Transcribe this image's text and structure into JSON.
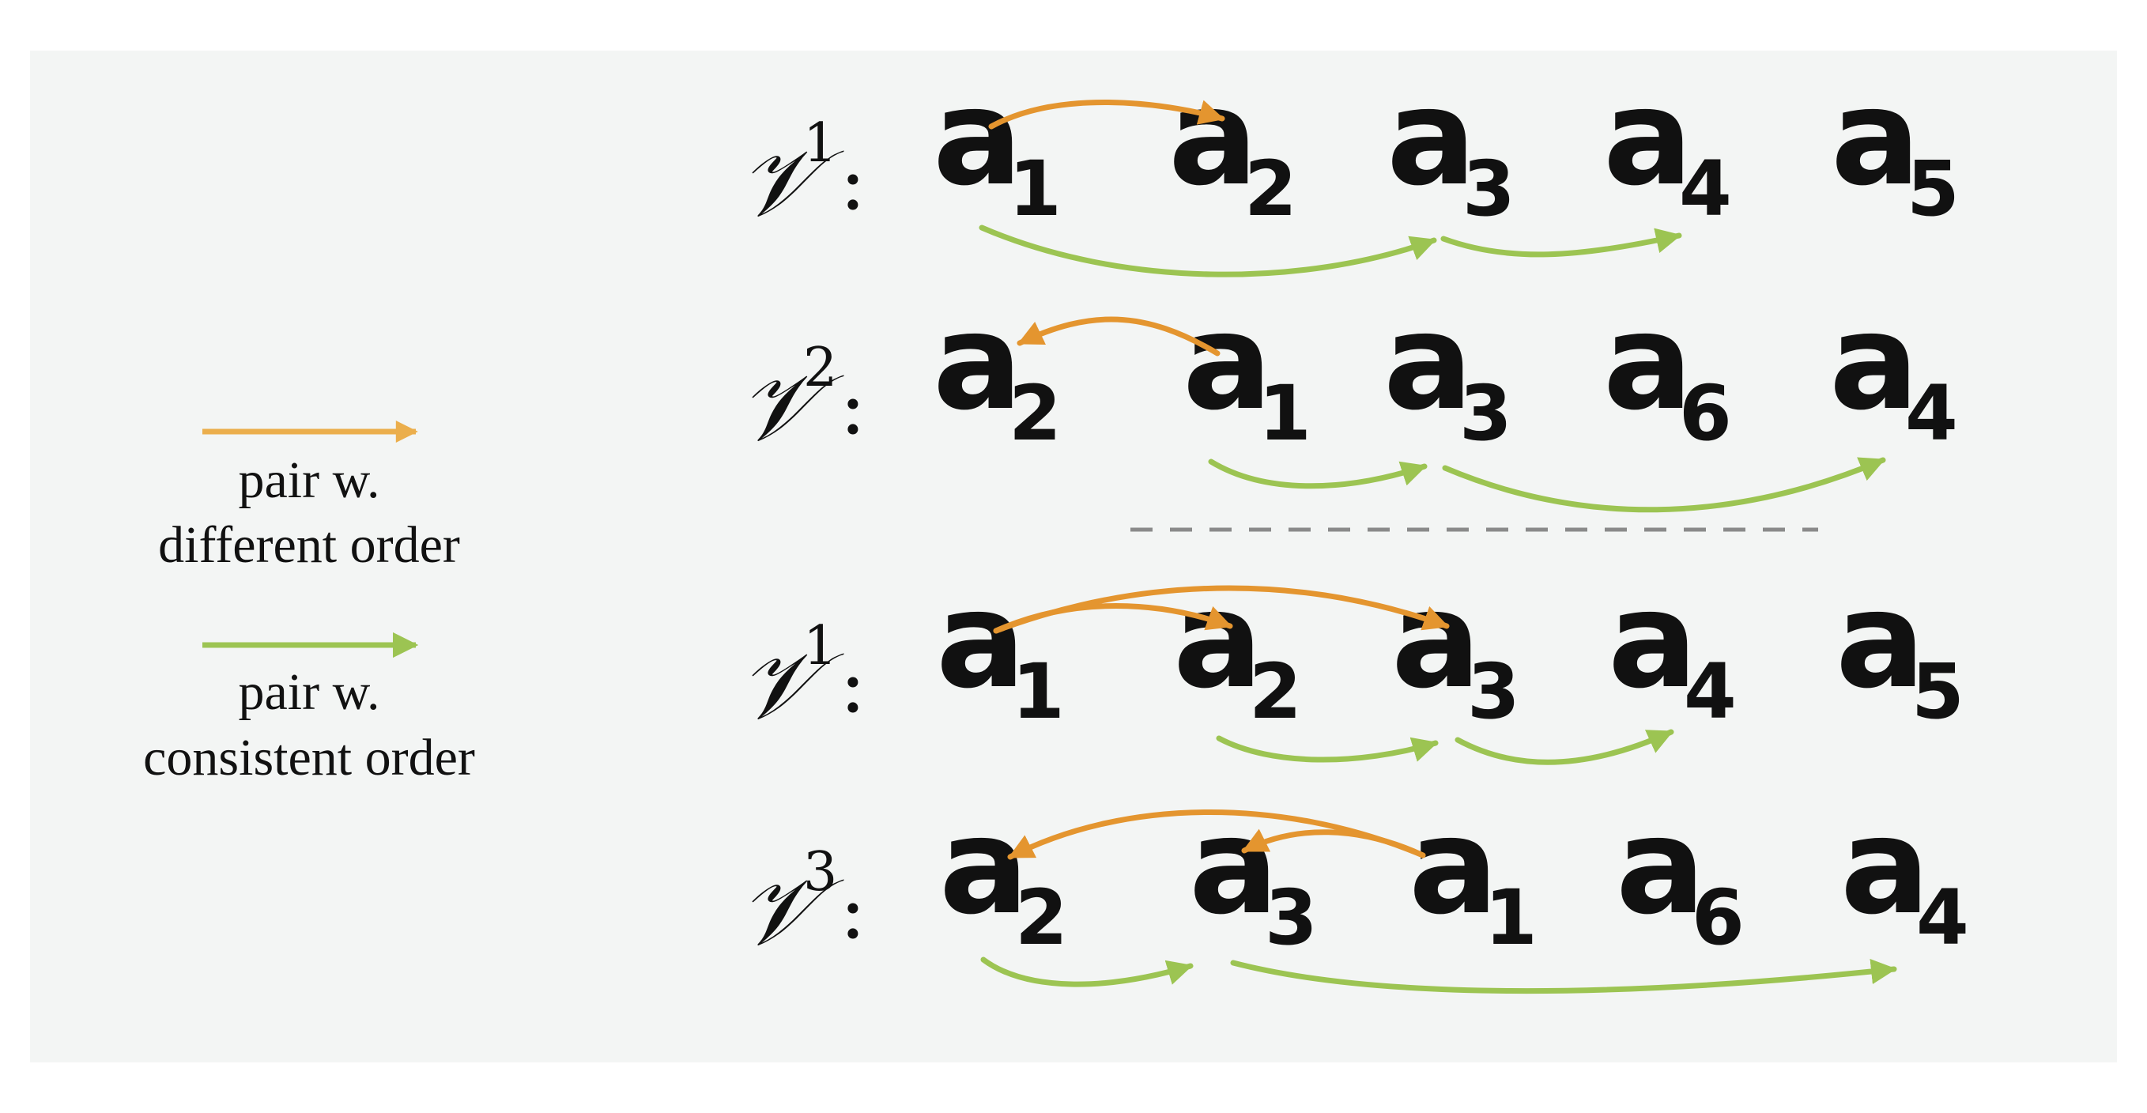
{
  "colors": {
    "different_order": "#e4952f",
    "consistent_order": "#9cc452",
    "panel_background": "#f3f5f4",
    "separator": "#8a8a8a"
  },
  "legend": {
    "different": {
      "line1": "pair w.",
      "line2": "different order"
    },
    "consistent": {
      "line1": "pair w.",
      "line2": "consistent order"
    }
  },
  "sequences": [
    {
      "label": "𝒱",
      "sup": "1",
      "colon": ":",
      "items": [
        {
          "letter": "a",
          "sub": "1"
        },
        {
          "letter": "a",
          "sub": "2"
        },
        {
          "letter": "a",
          "sub": "3"
        },
        {
          "letter": "a",
          "sub": "4"
        },
        {
          "letter": "a",
          "sub": "5"
        }
      ]
    },
    {
      "label": "𝒱",
      "sup": "2",
      "colon": ":",
      "items": [
        {
          "letter": "a",
          "sub": "2"
        },
        {
          "letter": "a",
          "sub": "1"
        },
        {
          "letter": "a",
          "sub": "3"
        },
        {
          "letter": "a",
          "sub": "6"
        },
        {
          "letter": "a",
          "sub": "4"
        }
      ]
    },
    {
      "label": "𝒱",
      "sup": "1",
      "colon": ":",
      "items": [
        {
          "letter": "a",
          "sub": "1"
        },
        {
          "letter": "a",
          "sub": "2"
        },
        {
          "letter": "a",
          "sub": "3"
        },
        {
          "letter": "a",
          "sub": "4"
        },
        {
          "letter": "a",
          "sub": "5"
        }
      ]
    },
    {
      "label": "𝒱",
      "sup": "3",
      "colon": ":",
      "items": [
        {
          "letter": "a",
          "sub": "2"
        },
        {
          "letter": "a",
          "sub": "3"
        },
        {
          "letter": "a",
          "sub": "1"
        },
        {
          "letter": "a",
          "sub": "6"
        },
        {
          "letter": "a",
          "sub": "4"
        }
      ]
    }
  ]
}
